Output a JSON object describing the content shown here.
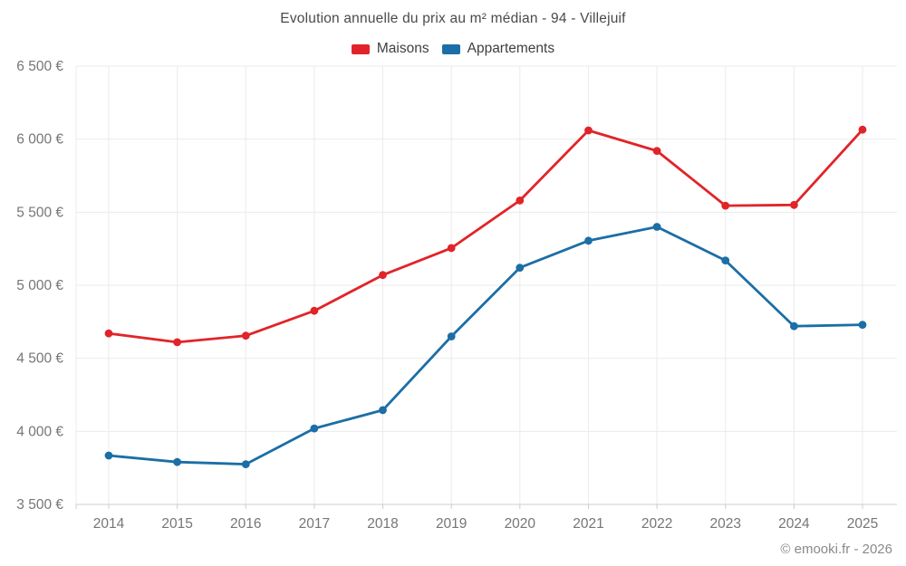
{
  "chart_data": {
    "type": "line",
    "title": "Evolution annuelle du prix au m² médian - 94 - Villejuif",
    "categories": [
      "2014",
      "2015",
      "2016",
      "2017",
      "2018",
      "2019",
      "2020",
      "2021",
      "2022",
      "2023",
      "2024",
      "2025"
    ],
    "series": [
      {
        "name": "Maisons",
        "color": "#e12429",
        "values": [
          4670,
          4610,
          4655,
          4825,
          5070,
          5255,
          5580,
          6060,
          5920,
          5545,
          5550,
          6065
        ]
      },
      {
        "name": "Appartements",
        "color": "#1b6ea6",
        "values": [
          3835,
          3790,
          3775,
          4020,
          4145,
          4650,
          5120,
          5305,
          5400,
          5170,
          4720,
          4730
        ]
      }
    ],
    "xlabel": "",
    "ylabel": "",
    "ylim": [
      3500,
      6500
    ],
    "y_ticks": [
      3500,
      4000,
      4500,
      5000,
      5500,
      6000,
      6500
    ],
    "y_tick_labels": [
      "3 500 €",
      "4 000 €",
      "4 500 €",
      "5 000 €",
      "5 500 €",
      "6 000 €",
      "6 500 €"
    ],
    "grid": true,
    "legend_position": "top"
  },
  "footer": {
    "credit": "© emooki.fr - 2026"
  },
  "colors": {
    "grid": "#ebebeb",
    "axis": "#cccccc",
    "tick_text": "#767676",
    "title_text": "#4a4a4a",
    "footer_text": "#8a8a8a",
    "background": "#ffffff"
  }
}
